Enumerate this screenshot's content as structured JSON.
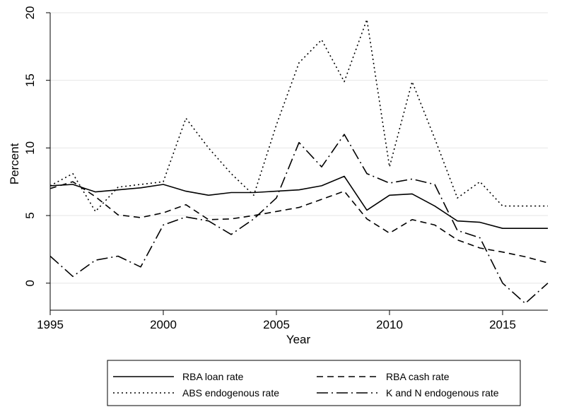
{
  "chart_data": {
    "type": "line",
    "xlabel": "Year",
    "ylabel": "Percent",
    "xlim": [
      1995,
      2017
    ],
    "ylim": [
      -2,
      20
    ],
    "xticks": [
      1995,
      2000,
      2005,
      2010,
      2015
    ],
    "yticks": [
      0,
      5,
      10,
      15,
      20
    ],
    "grid": "horizontal",
    "legend_position": "bottom",
    "x": [
      1995,
      1996,
      1997,
      1998,
      1999,
      2000,
      2001,
      2002,
      2003,
      2004,
      2005,
      2006,
      2007,
      2008,
      2009,
      2010,
      2011,
      2012,
      2013,
      2014,
      2015,
      2016,
      2017
    ],
    "series": [
      {
        "name": "RBA loan rate",
        "dash": "solid",
        "values": [
          7.2,
          7.3,
          6.75,
          6.9,
          7.05,
          7.3,
          6.8,
          6.5,
          6.7,
          6.7,
          6.8,
          6.9,
          7.2,
          7.9,
          5.4,
          6.5,
          6.6,
          5.7,
          4.6,
          4.5,
          4.05,
          4.05,
          4.05
        ]
      },
      {
        "name": "RBA cash rate",
        "dash": "dashed",
        "values": [
          7.0,
          7.5,
          6.4,
          5.05,
          4.85,
          5.2,
          5.8,
          4.7,
          4.75,
          5.0,
          5.3,
          5.6,
          6.2,
          6.8,
          4.75,
          3.7,
          4.7,
          4.3,
          3.2,
          2.6,
          2.3,
          1.95,
          1.5
        ]
      },
      {
        "name": "ABS endogenous rate",
        "dash": "dotted",
        "values": [
          7.2,
          8.1,
          5.3,
          7.1,
          7.3,
          7.5,
          12.2,
          10.0,
          8.1,
          6.5,
          11.7,
          16.3,
          18.0,
          14.9,
          19.5,
          8.6,
          14.9,
          10.7,
          6.3,
          7.5,
          5.7,
          5.7,
          5.7
        ]
      },
      {
        "name": "K and N endogenous rate",
        "dash": "dashdot",
        "values": [
          2.0,
          0.5,
          1.7,
          2.0,
          1.2,
          4.3,
          4.9,
          4.6,
          3.6,
          4.75,
          6.3,
          10.4,
          8.6,
          11.0,
          8.1,
          7.4,
          7.7,
          7.3,
          3.9,
          3.35,
          0.0,
          -1.5,
          0.0
        ]
      }
    ]
  }
}
